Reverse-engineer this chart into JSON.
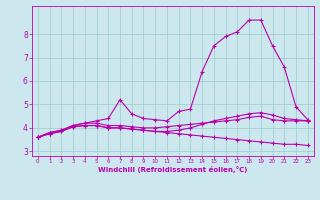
{
  "background_color": "#cce8ee",
  "line_color": "#bb00aa",
  "grid_color": "#99cccc",
  "xlabel": "Windchill (Refroidissement éolien,°C)",
  "xlabel_color": "#bb00aa",
  "tick_color": "#bb00aa",
  "xlim": [
    -0.5,
    23.5
  ],
  "ylim": [
    2.8,
    9.2
  ],
  "yticks": [
    3,
    4,
    5,
    6,
    7,
    8
  ],
  "xticks": [
    0,
    1,
    2,
    3,
    4,
    5,
    6,
    7,
    8,
    9,
    10,
    11,
    12,
    13,
    14,
    15,
    16,
    17,
    18,
    19,
    20,
    21,
    22,
    23
  ],
  "lines": [
    [
      3.6,
      3.8,
      3.9,
      4.1,
      4.2,
      4.3,
      4.4,
      5.2,
      4.6,
      4.4,
      4.35,
      4.3,
      4.7,
      4.8,
      6.4,
      7.5,
      7.9,
      8.1,
      8.6,
      8.6,
      7.5,
      6.6,
      4.9,
      4.35
    ],
    [
      3.6,
      3.8,
      3.9,
      4.1,
      4.2,
      4.2,
      4.1,
      4.1,
      4.05,
      4.0,
      4.0,
      4.05,
      4.1,
      4.15,
      4.2,
      4.25,
      4.3,
      4.35,
      4.45,
      4.5,
      4.35,
      4.3,
      4.3,
      4.3
    ],
    [
      3.6,
      3.75,
      3.85,
      4.05,
      4.1,
      4.1,
      4.0,
      4.0,
      3.95,
      3.9,
      3.85,
      3.8,
      3.75,
      3.7,
      3.65,
      3.6,
      3.55,
      3.5,
      3.45,
      3.4,
      3.35,
      3.3,
      3.3,
      3.25
    ],
    [
      3.6,
      3.75,
      3.85,
      4.05,
      4.1,
      4.1,
      4.0,
      4.0,
      3.95,
      3.9,
      3.85,
      3.85,
      3.9,
      4.0,
      4.15,
      4.3,
      4.4,
      4.5,
      4.6,
      4.65,
      4.55,
      4.4,
      4.35,
      4.3
    ]
  ],
  "figwidth": 3.2,
  "figheight": 2.0,
  "dpi": 100
}
